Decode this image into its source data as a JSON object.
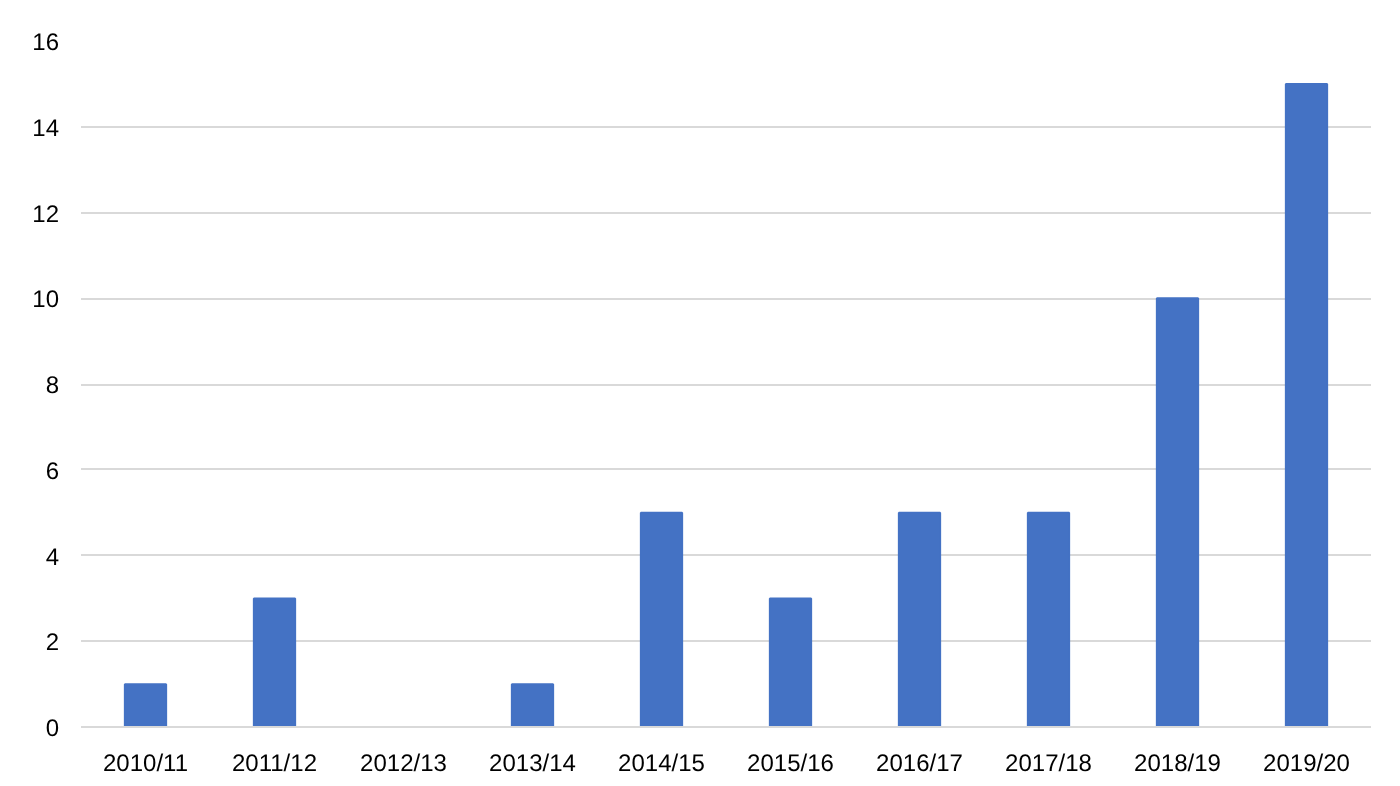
{
  "chart_data": {
    "type": "bar",
    "categories": [
      "2010/11",
      "2011/12",
      "2012/13",
      "2013/14",
      "2014/15",
      "2015/16",
      "2016/17",
      "2017/18",
      "2018/19",
      "2019/20"
    ],
    "values": [
      1,
      3,
      0,
      1,
      5,
      3,
      5,
      5,
      10,
      15
    ],
    "color": "#4472c4",
    "ylim": [
      0,
      16
    ],
    "yticks": [
      0,
      2,
      4,
      6,
      8,
      10,
      12,
      14,
      16
    ],
    "grid": "y"
  }
}
